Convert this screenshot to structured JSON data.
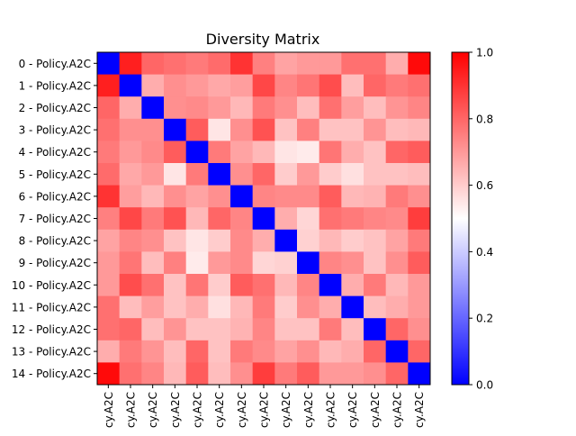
{
  "chart_data": {
    "type": "heatmap",
    "title": "Diversity Matrix",
    "row_labels": [
      "0 - Policy.A2C",
      "1 - Policy.A2C",
      "2 - Policy.A2C",
      "3 - Policy.A2C",
      "4 - Policy.A2C",
      "5 - Policy.A2C",
      "6 - Policy.A2C",
      "7 - Policy.A2C",
      "8 - Policy.A2C",
      "9 - Policy.A2C",
      "10 - Policy.A2C",
      "11 - Policy.A2C",
      "12 - Policy.A2C",
      "13 - Policy.A2C",
      "14 - Policy.A2C"
    ],
    "col_labels": [
      "cy.A2C",
      "cy.A2C",
      "cy.A2C",
      "cy.A2C",
      "cy.A2C",
      "cy.A2C",
      "cy.A2C",
      "cy.A2C",
      "cy.A2C",
      "cy.A2C",
      "cy.A2C",
      "cy.A2C",
      "cy.A2C",
      "cy.A2C",
      "cy.A2C"
    ],
    "values": [
      [
        0.0,
        0.94,
        0.8,
        0.78,
        0.76,
        0.79,
        0.9,
        0.75,
        0.68,
        0.7,
        0.7,
        0.78,
        0.78,
        0.66,
        0.98
      ],
      [
        0.94,
        0.0,
        0.66,
        0.72,
        0.7,
        0.67,
        0.69,
        0.86,
        0.74,
        0.77,
        0.85,
        0.63,
        0.8,
        0.76,
        0.78
      ],
      [
        0.8,
        0.66,
        0.0,
        0.72,
        0.73,
        0.7,
        0.64,
        0.76,
        0.72,
        0.63,
        0.78,
        0.69,
        0.63,
        0.71,
        0.74
      ],
      [
        0.78,
        0.72,
        0.72,
        0.0,
        0.82,
        0.55,
        0.72,
        0.84,
        0.62,
        0.75,
        0.62,
        0.62,
        0.71,
        0.63,
        0.64
      ],
      [
        0.76,
        0.7,
        0.73,
        0.82,
        0.0,
        0.76,
        0.68,
        0.64,
        0.55,
        0.54,
        0.77,
        0.66,
        0.62,
        0.8,
        0.82
      ],
      [
        0.79,
        0.67,
        0.7,
        0.55,
        0.76,
        0.0,
        0.72,
        0.8,
        0.6,
        0.7,
        0.6,
        0.56,
        0.62,
        0.62,
        0.63
      ],
      [
        0.9,
        0.69,
        0.64,
        0.72,
        0.68,
        0.72,
        0.0,
        0.74,
        0.73,
        0.73,
        0.82,
        0.64,
        0.65,
        0.76,
        0.72
      ],
      [
        0.75,
        0.86,
        0.76,
        0.84,
        0.64,
        0.8,
        0.74,
        0.0,
        0.66,
        0.58,
        0.78,
        0.76,
        0.74,
        0.73,
        0.88
      ],
      [
        0.68,
        0.74,
        0.72,
        0.62,
        0.55,
        0.6,
        0.73,
        0.66,
        0.0,
        0.59,
        0.64,
        0.6,
        0.62,
        0.68,
        0.76
      ],
      [
        0.7,
        0.77,
        0.63,
        0.75,
        0.54,
        0.7,
        0.73,
        0.58,
        0.59,
        0.0,
        0.74,
        0.72,
        0.62,
        0.72,
        0.82
      ],
      [
        0.7,
        0.85,
        0.78,
        0.62,
        0.77,
        0.6,
        0.82,
        0.78,
        0.64,
        0.74,
        0.0,
        0.66,
        0.76,
        0.64,
        0.7
      ],
      [
        0.78,
        0.63,
        0.69,
        0.62,
        0.66,
        0.56,
        0.64,
        0.76,
        0.6,
        0.72,
        0.66,
        0.0,
        0.63,
        0.66,
        0.7
      ],
      [
        0.78,
        0.8,
        0.63,
        0.71,
        0.62,
        0.62,
        0.65,
        0.74,
        0.62,
        0.62,
        0.76,
        0.63,
        0.0,
        0.8,
        0.72
      ],
      [
        0.66,
        0.76,
        0.71,
        0.63,
        0.8,
        0.62,
        0.76,
        0.73,
        0.68,
        0.72,
        0.64,
        0.66,
        0.8,
        0.0,
        0.8
      ],
      [
        0.98,
        0.78,
        0.74,
        0.64,
        0.82,
        0.63,
        0.72,
        0.88,
        0.76,
        0.82,
        0.7,
        0.7,
        0.72,
        0.8,
        0.0
      ]
    ],
    "colormap": "bwr",
    "vmin": 0.0,
    "vmax": 1.0,
    "colorbar_ticks": [
      "0.0",
      "0.2",
      "0.4",
      "0.6",
      "0.8",
      "1.0"
    ],
    "colorbar_tick_values": [
      0.0,
      0.2,
      0.4,
      0.6,
      0.8,
      1.0
    ]
  }
}
